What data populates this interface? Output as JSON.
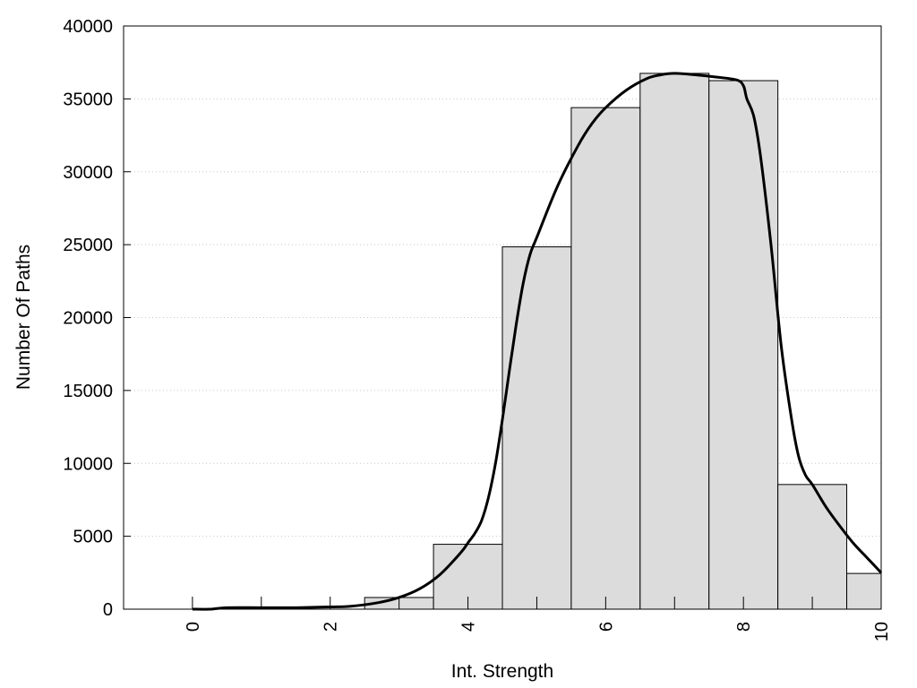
{
  "chart_data": {
    "type": "bar",
    "title": "",
    "xlabel": "Int. Strength",
    "ylabel": "Number Of Paths",
    "xlim": [
      -1,
      10
    ],
    "ylim": [
      0,
      40000
    ],
    "x_ticks": [
      0,
      2,
      4,
      6,
      8,
      10
    ],
    "y_ticks": [
      0,
      5000,
      10000,
      15000,
      20000,
      25000,
      30000,
      35000,
      40000
    ],
    "grid": "horizontal dotted",
    "bar_fill": "#dcdcdc",
    "bar_stroke": "#000000",
    "line_color": "#000000",
    "series": [
      {
        "type": "bar",
        "x": [
          0,
          1,
          2,
          3,
          4,
          5,
          6,
          7,
          8,
          9,
          10
        ],
        "values": [
          0,
          0,
          0,
          800,
          4450,
          24850,
          34400,
          36750,
          36250,
          8550,
          2450
        ]
      },
      {
        "type": "line",
        "x": [
          0,
          0.25,
          0.5,
          1,
          1.5,
          2,
          2.3,
          2.7,
          3,
          3.3,
          3.6,
          3.9,
          4,
          4.1,
          4.2,
          4.3,
          4.4,
          4.5,
          4.6,
          4.7,
          4.8,
          4.9,
          5,
          5.3,
          5.6,
          5.8,
          6,
          6.3,
          6.6,
          6.8,
          7,
          7.3,
          7.6,
          7.9,
          8,
          8.05,
          8.15,
          8.25,
          8.4,
          8.55,
          8.7,
          8.8,
          8.9,
          9,
          9.2,
          9.4,
          9.6,
          9.8,
          10
        ],
        "values": [
          0,
          0,
          100,
          100,
          100,
          150,
          200,
          450,
          800,
          1400,
          2400,
          3900,
          4550,
          5200,
          6100,
          7700,
          10000,
          13000,
          16300,
          19500,
          22300,
          24300,
          25500,
          29000,
          31800,
          33300,
          34400,
          35600,
          36400,
          36650,
          36750,
          36650,
          36500,
          36300,
          35900,
          35000,
          33800,
          31000,
          25000,
          18000,
          13000,
          10500,
          9200,
          8550,
          7000,
          5700,
          4500,
          3500,
          2500
        ]
      }
    ]
  }
}
